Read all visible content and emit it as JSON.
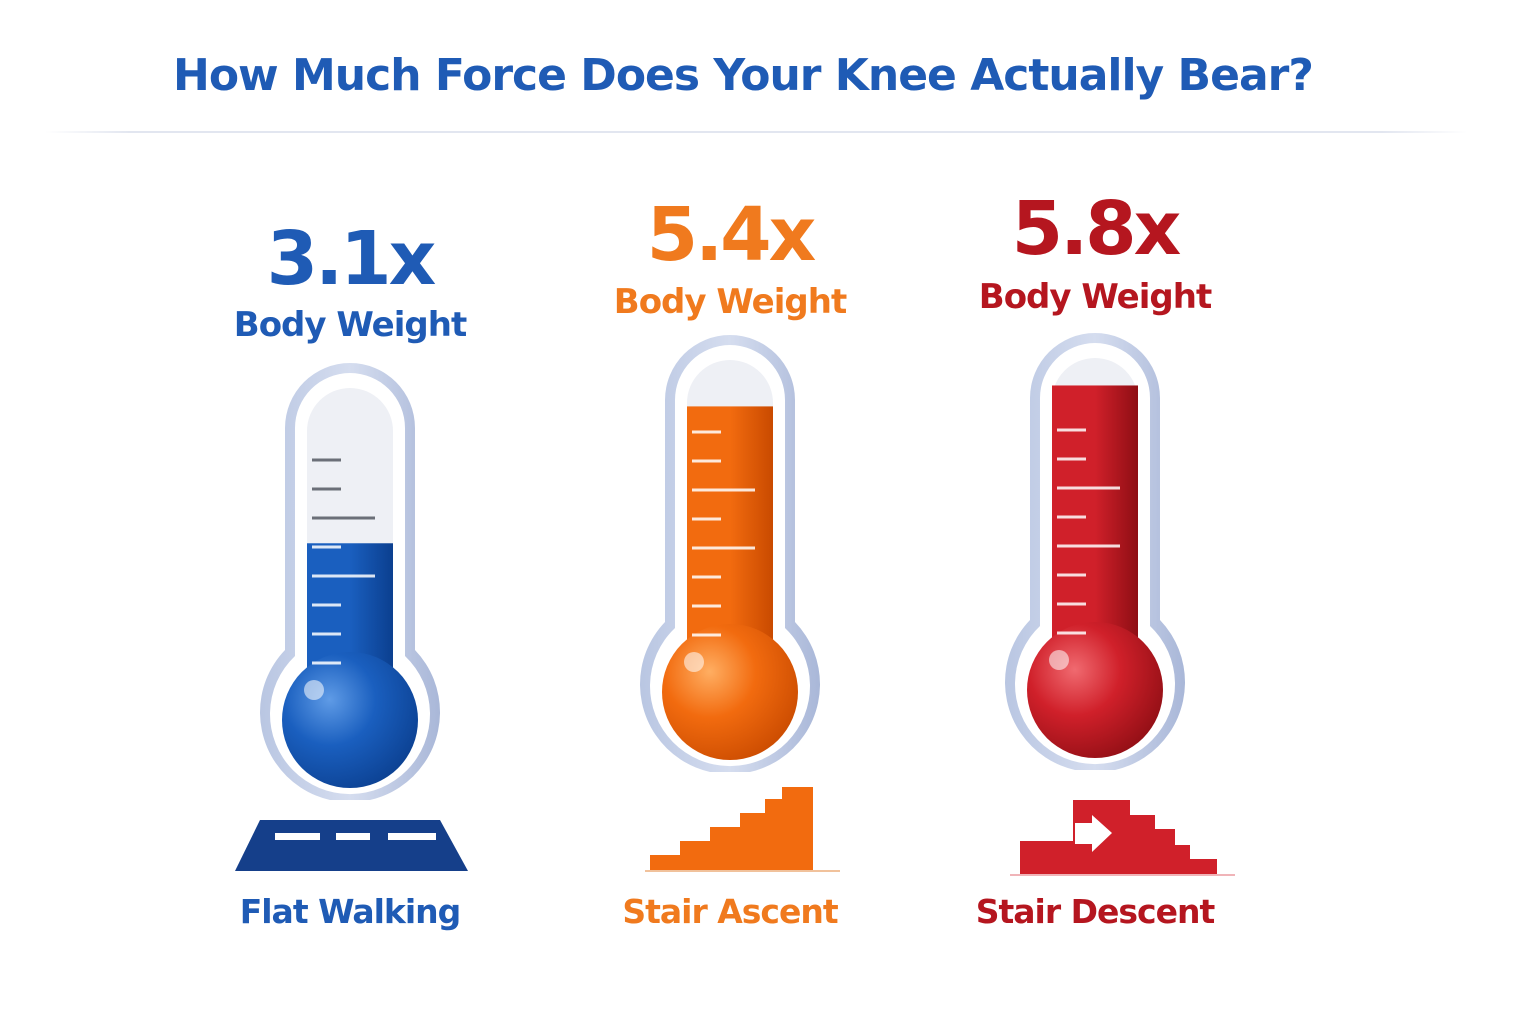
{
  "title": "How Much Force Does Your Knee Actually Bear?",
  "chart_data": {
    "type": "bar",
    "style": "thermometer",
    "categories": [
      "Flat Walking",
      "Stair Ascent",
      "Stair Descent"
    ],
    "values": [
      3.1,
      5.4,
      5.8
    ],
    "value_labels": [
      "3.1x",
      "5.4x",
      "5.8x"
    ],
    "unit_label": "Body Weight",
    "ylim": [
      0,
      6
    ],
    "colors": [
      "#1a5fbf",
      "#f26b0f",
      "#d0202a"
    ],
    "label_colors": [
      "#1f5bb5",
      "#f07a1e",
      "#b5161f"
    ],
    "icons": [
      "flat-road-icon",
      "stairs-up-icon",
      "stairs-down-icon"
    ]
  }
}
